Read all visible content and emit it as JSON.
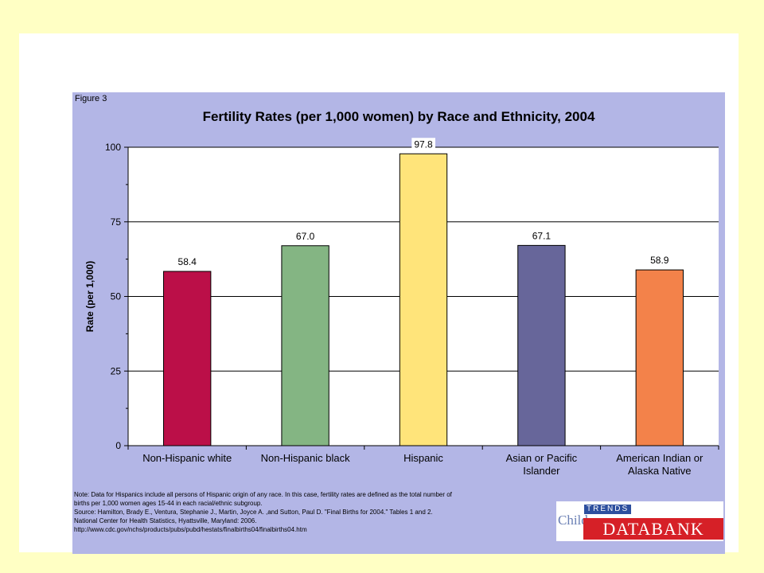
{
  "figure_label": "Figure 3",
  "chart_data": {
    "type": "bar",
    "title": "Fertility Rates (per 1,000 women) by Race and Ethnicity, 2004",
    "xlabel": "",
    "ylabel": "Rate (per 1,000)",
    "ylim": [
      0,
      100
    ],
    "yticks": [
      0,
      25,
      50,
      75,
      100
    ],
    "grid": true,
    "categories": [
      [
        "Non-Hispanic white"
      ],
      [
        "Non-Hispanic black"
      ],
      [
        "Hispanic"
      ],
      [
        "Asian or Pacific",
        "Islander"
      ],
      [
        "American Indian or",
        "Alaska Native"
      ]
    ],
    "values": [
      58.4,
      67.0,
      97.8,
      67.1,
      58.9
    ],
    "data_labels": [
      "58.4",
      "67.0",
      "97.8",
      "67.1",
      "58.9"
    ],
    "colors": [
      "#bb0f48",
      "#84b583",
      "#ffe47a",
      "#67669a",
      "#f3824a"
    ],
    "plot_background": "#ffffff",
    "panel_background": "#b3b6e6"
  },
  "notes": [
    "Note: Data for Hispanics include all persons of Hispanic origin of any race. In this case, fertility rates are defined as the total number of",
    "births per 1,000 women ages 15-44 in each racial/ethnic subgroup.",
    "Source:   Hamilton, Brady E., Ventura, Stephanie J., Martin, Joyce A. ,and Sutton, Paul D. \"Final Births for 2004.\" Tables 1 and 2.",
    "National Center for Health Statistics, Hyattsville, Maryland: 2006.",
    "http://www.cdc.gov/nchs/products/pubs/pubd/hestats/finalbirths04/finalbirths04.htm"
  ],
  "logo": {
    "child": "Child",
    "trends": "TRENDS",
    "databank": "DATABANK"
  }
}
